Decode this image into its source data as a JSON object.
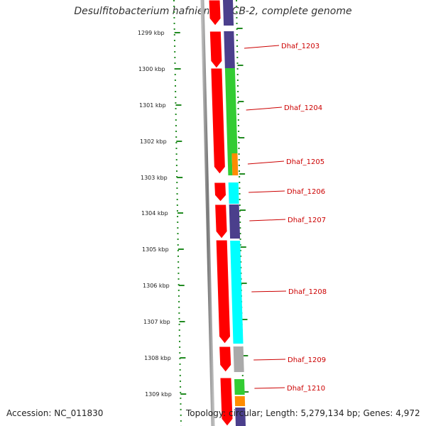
{
  "title": "Desulfitobacterium hafniense DCB-2, complete genome",
  "ruler": {
    "labels": [
      "1299 kbp",
      "1300 kbp",
      "1301 kbp",
      "1302 kbp",
      "1303 kbp",
      "1304 kbp",
      "1305 kbp",
      "1306 kbp",
      "1307 kbp",
      "1308 kbp",
      "1309 kbp"
    ]
  },
  "genes": [
    {
      "label": "Dhaf_1203",
      "color": "#4b3f8c"
    },
    {
      "label": "Dhaf_1204",
      "color": "#33cc33"
    },
    {
      "label": "Dhaf_1205",
      "color": "#ff8c00"
    },
    {
      "label": "Dhaf_1206",
      "color": "#00ffff"
    },
    {
      "label": "Dhaf_1207",
      "color": "#4b3f8c"
    },
    {
      "label": "Dhaf_1208",
      "color": "#00ffff"
    },
    {
      "label": "Dhaf_1209",
      "color": "#aaaaaa"
    },
    {
      "label": "Dhaf_1210",
      "color": "#33cc33"
    }
  ],
  "colors": {
    "strand": "#ff0000",
    "backbone": "#888888",
    "ruler": "#228b22",
    "label": "#cc0000"
  },
  "footer": {
    "accession": "Accession: NC_011830",
    "summary": "Topology: circular; Length: 5,279,134 bp; Genes: 4,972"
  }
}
